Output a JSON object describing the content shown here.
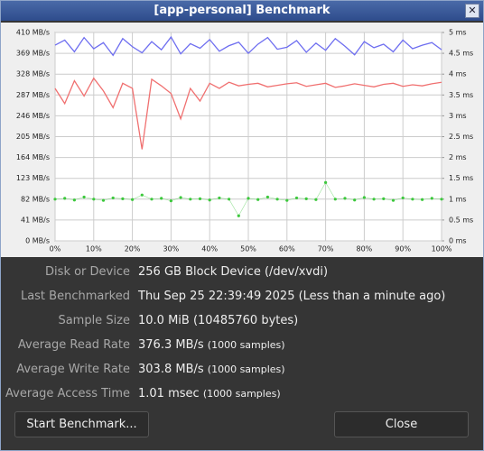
{
  "window": {
    "title": "[app-personal] Benchmark"
  },
  "chart_data": {
    "type": "line",
    "x": [
      0,
      2.5,
      5,
      7.5,
      10,
      12.5,
      15,
      17.5,
      20,
      22.5,
      25,
      27.5,
      30,
      32.5,
      35,
      37.5,
      40,
      42.5,
      45,
      47.5,
      50,
      52.5,
      55,
      57.5,
      60,
      62.5,
      65,
      67.5,
      70,
      72.5,
      75,
      77.5,
      80,
      82.5,
      85,
      87.5,
      90,
      92.5,
      95,
      97.5,
      100
    ],
    "series": [
      {
        "color": "#6e6ef0",
        "values": [
          385,
          395,
          372,
          400,
          378,
          390,
          365,
          398,
          382,
          370,
          392,
          376,
          401,
          368,
          388,
          379,
          396,
          373,
          384,
          391,
          369,
          387,
          400,
          377,
          381,
          394,
          371,
          389,
          375,
          398,
          383,
          366,
          392,
          380,
          387,
          372,
          395,
          378,
          385,
          390,
          376
        ]
      },
      {
        "color": "#f07070",
        "values": [
          300,
          270,
          315,
          285,
          320,
          295,
          262,
          310,
          300,
          180,
          318,
          305,
          290,
          240,
          300,
          275,
          310,
          300,
          312,
          305,
          308,
          310,
          303,
          306,
          309,
          311,
          304,
          307,
          310,
          302,
          305,
          309,
          306,
          303,
          308,
          310,
          304,
          307,
          305,
          309,
          312
        ]
      },
      {
        "color": "#3cc83c",
        "axis": "y2",
        "values": [
          1.0,
          1.02,
          0.98,
          1.05,
          1.0,
          0.97,
          1.03,
          1.01,
          0.99,
          1.1,
          1.0,
          1.02,
          0.96,
          1.04,
          1.0,
          1.01,
          0.98,
          1.03,
          1.0,
          0.6,
          1.02,
          0.99,
          1.05,
          1.0,
          0.97,
          1.03,
          1.01,
          0.99,
          1.4,
          1.0,
          1.02,
          0.98,
          1.04,
          1.0,
          1.01,
          0.97,
          1.03,
          1.0,
          0.99,
          1.02,
          1.0
        ]
      }
    ],
    "xlim": [
      0,
      100
    ],
    "xticks": [
      {
        "value": 0,
        "label": "0%"
      },
      {
        "value": 10,
        "label": "10%"
      },
      {
        "value": 20,
        "label": "20%"
      },
      {
        "value": 30,
        "label": "30%"
      },
      {
        "value": 40,
        "label": "40%"
      },
      {
        "value": 50,
        "label": "50%"
      },
      {
        "value": 60,
        "label": "60%"
      },
      {
        "value": 70,
        "label": "70%"
      },
      {
        "value": 80,
        "label": "80%"
      },
      {
        "value": 90,
        "label": "90%"
      },
      {
        "value": 100,
        "label": "100%"
      }
    ],
    "ylim": [
      0,
      410
    ],
    "yticks": [
      {
        "value": 0,
        "label": "0 MB/s"
      },
      {
        "value": 41,
        "label": "41 MB/s"
      },
      {
        "value": 82,
        "label": "82 MB/s"
      },
      {
        "value": 123,
        "label": "123 MB/s"
      },
      {
        "value": 164,
        "label": "164 MB/s"
      },
      {
        "value": 205,
        "label": "205 MB/s"
      },
      {
        "value": 246,
        "label": "246 MB/s"
      },
      {
        "value": 287,
        "label": "287 MB/s"
      },
      {
        "value": 328,
        "label": "328 MB/s"
      },
      {
        "value": 369,
        "label": "369 MB/s"
      },
      {
        "value": 410,
        "label": "410 MB/s"
      }
    ],
    "y2lim": [
      0,
      5
    ],
    "y2ticks": [
      {
        "value": 0,
        "label": "0 ms"
      },
      {
        "value": 0.5,
        "label": "0.5 ms"
      },
      {
        "value": 1,
        "label": "1 ms"
      },
      {
        "value": 1.5,
        "label": "1.5 ms"
      },
      {
        "value": 2,
        "label": "2 ms"
      },
      {
        "value": 2.5,
        "label": "2.5 ms"
      },
      {
        "value": 3,
        "label": "3 ms"
      },
      {
        "value": 3.5,
        "label": "3.5 ms"
      },
      {
        "value": 4,
        "label": "4 ms"
      },
      {
        "value": 4.5,
        "label": "4.5 ms"
      },
      {
        "value": 5,
        "label": "5 ms"
      }
    ],
    "grid": true
  },
  "info": [
    {
      "label": "Disk or Device",
      "value": "256 GB Block Device (/dev/xvdi)"
    },
    {
      "label": "Last Benchmarked",
      "value": "Thu Sep 25 22:39:49 2025 (Less than a minute ago)"
    },
    {
      "label": "Sample Size",
      "value": "10.0 MiB (10485760 bytes)"
    },
    {
      "label": "Average Read Rate",
      "value": "376.3 MB/s",
      "note": "(1000 samples)"
    },
    {
      "label": "Average Write Rate",
      "value": "303.8 MB/s",
      "note": "(1000 samples)"
    },
    {
      "label": "Average Access Time",
      "value": "1.01 msec",
      "note": "(1000 samples)"
    }
  ],
  "buttons": [
    "Start Benchmark...",
    "Close"
  ]
}
